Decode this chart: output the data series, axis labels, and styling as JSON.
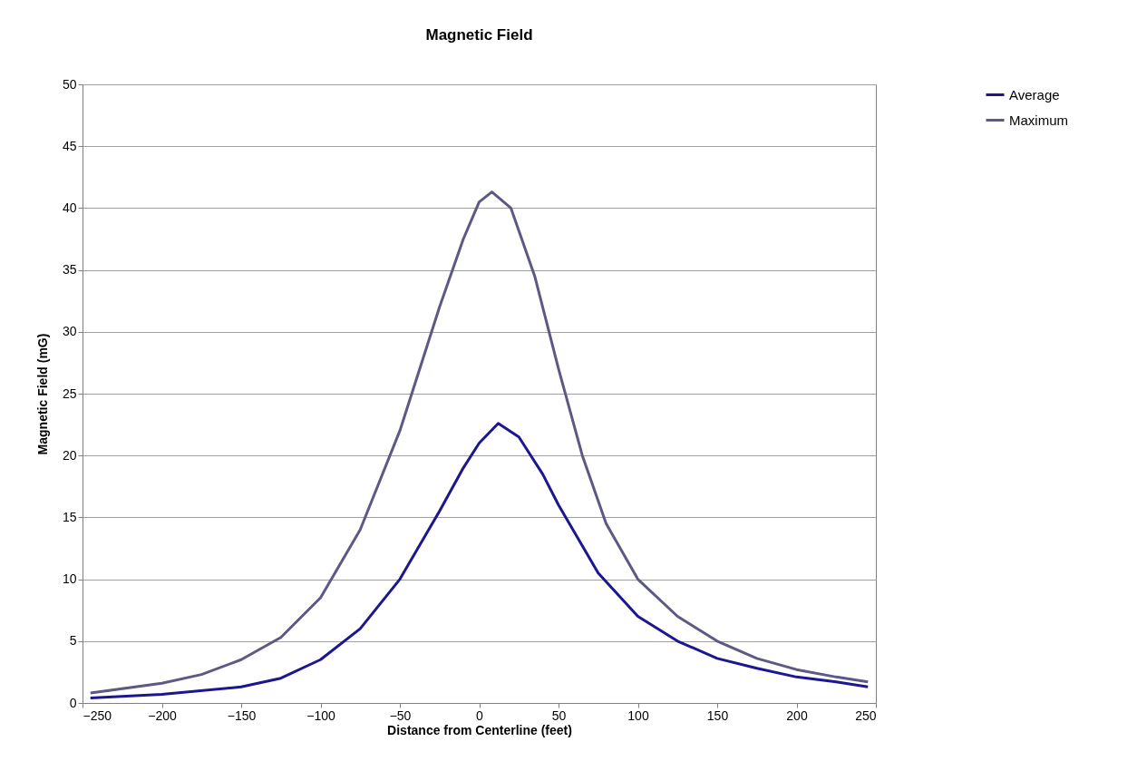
{
  "chart_data": {
    "type": "line",
    "title": "Magnetic Field",
    "xlabel": "Distance from Centerline (feet)",
    "ylabel": "Magnetic Field (mG)",
    "xlim": [
      -250,
      250
    ],
    "xticks": [
      -250,
      -200,
      -150,
      -100,
      -50,
      0,
      50,
      100,
      150,
      200,
      250
    ],
    "ylim": [
      0,
      50
    ],
    "yticks": [
      0,
      5,
      10,
      15,
      20,
      25,
      30,
      35,
      40,
      45,
      50
    ],
    "grid": "y",
    "legend": "right",
    "line_style": "solid",
    "marker": "none",
    "series": [
      {
        "name": "Average",
        "color": "#1c1690",
        "x": [
          -245,
          -200,
          -150,
          -125,
          -100,
          -75,
          -50,
          -25,
          -10,
          0,
          12,
          25,
          40,
          50,
          75,
          100,
          125,
          150,
          175,
          200,
          225,
          245
        ],
        "values": [
          0.4,
          0.7,
          1.3,
          2,
          3.5,
          6,
          10,
          15.5,
          19,
          21,
          22.6,
          21.5,
          18.5,
          16,
          10.5,
          7,
          5,
          3.6,
          2.8,
          2.1,
          1.7,
          1.3
        ]
      },
      {
        "name": "Maximum",
        "color": "#5c5a84",
        "x": [
          -245,
          -200,
          -175,
          -150,
          -125,
          -100,
          -75,
          -50,
          -25,
          -10,
          0,
          8,
          20,
          35,
          50,
          65,
          80,
          100,
          125,
          150,
          175,
          200,
          225,
          245
        ],
        "values": [
          0.8,
          1.6,
          2.3,
          3.5,
          5.3,
          8.5,
          14,
          22,
          32,
          37.5,
          40.5,
          41.3,
          40,
          34.5,
          27,
          20,
          14.5,
          10,
          7,
          5,
          3.6,
          2.7,
          2.1,
          1.7
        ]
      }
    ]
  }
}
